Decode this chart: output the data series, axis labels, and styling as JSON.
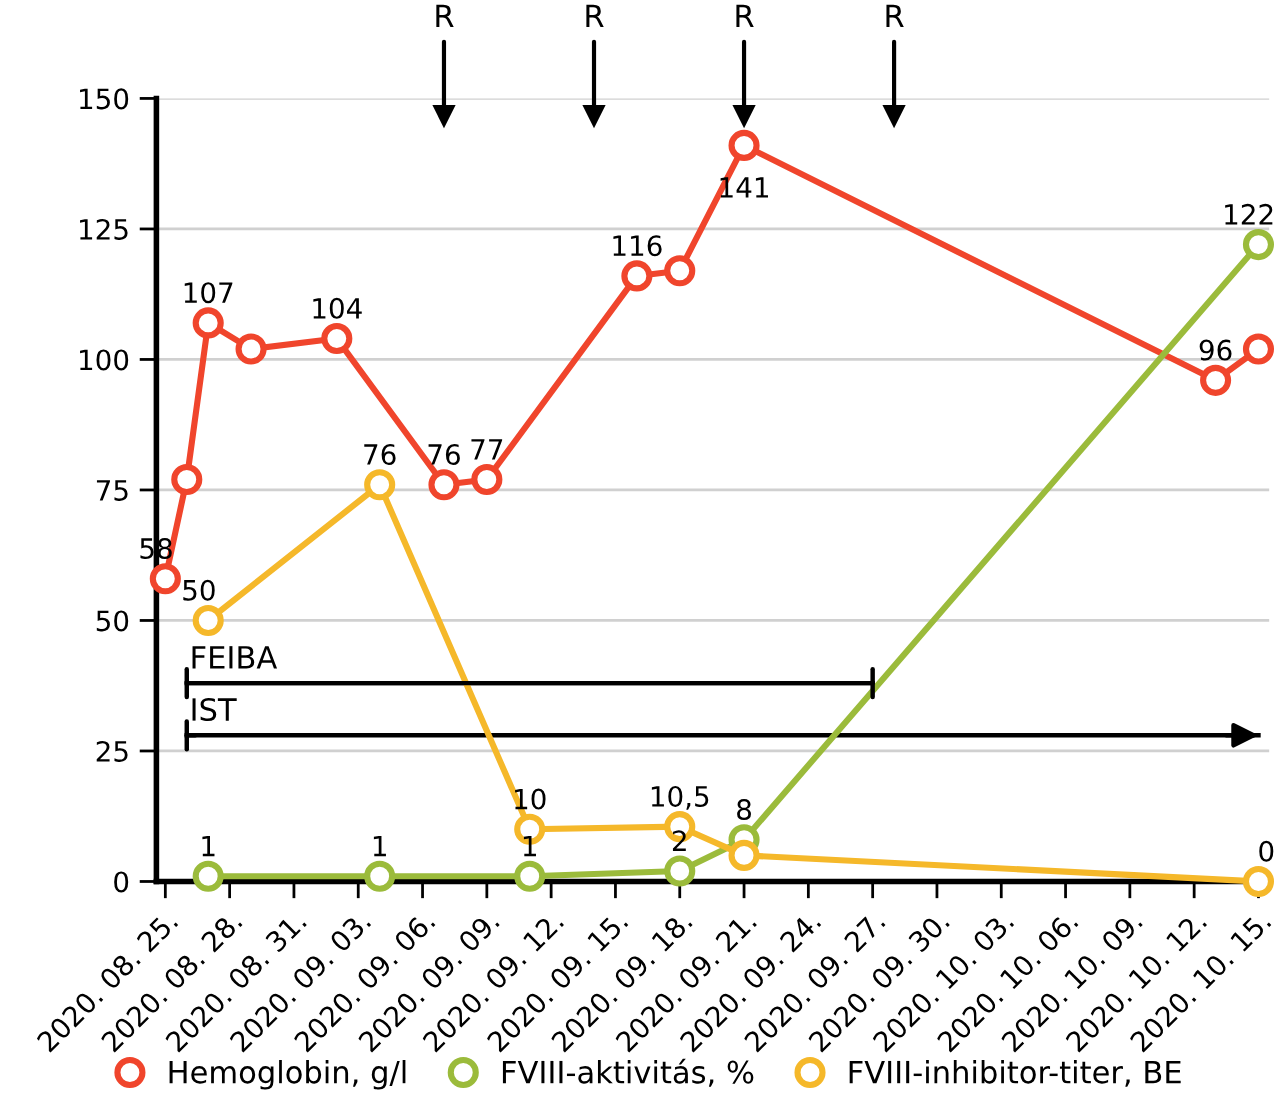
{
  "chart_data": {
    "type": "line",
    "marker": "circle",
    "grid": "y",
    "legend": "bottom",
    "xlim": [
      "2020-08-24T14:00",
      "2020-10-15T12:00"
    ],
    "ylim": [
      0,
      150
    ],
    "yticks": [
      0,
      25,
      50,
      75,
      100,
      125,
      150
    ],
    "xticks": [
      {
        "value": "2020-08-25",
        "label": "2020. 08. 25."
      },
      {
        "value": "2020-08-28",
        "label": "2020. 08. 28."
      },
      {
        "value": "2020-08-31",
        "label": "2020. 08. 31."
      },
      {
        "value": "2020-09-03",
        "label": "2020. 09. 03."
      },
      {
        "value": "2020-09-06",
        "label": "2020. 09. 06."
      },
      {
        "value": "2020-09-09",
        "label": "2020. 09. 09."
      },
      {
        "value": "2020-09-12",
        "label": "2020. 09. 12."
      },
      {
        "value": "2020-09-15",
        "label": "2020. 09. 15."
      },
      {
        "value": "2020-09-18",
        "label": "2020. 09. 18."
      },
      {
        "value": "2020-09-21",
        "label": "2020. 09. 21."
      },
      {
        "value": "2020-09-24",
        "label": "2020. 09. 24."
      },
      {
        "value": "2020-09-27",
        "label": "2020. 09. 27."
      },
      {
        "value": "2020-09-30",
        "label": "2020. 09. 30."
      },
      {
        "value": "2020-10-03",
        "label": "2020. 10. 03."
      },
      {
        "value": "2020-10-06",
        "label": "2020. 10. 06."
      },
      {
        "value": "2020-10-09",
        "label": "2020. 10. 09."
      },
      {
        "value": "2020-10-12",
        "label": "2020. 10. 12."
      },
      {
        "value": "2020-10-15",
        "label": "2020. 10. 15."
      }
    ],
    "series": [
      {
        "name": "Hemoglobin, g/l",
        "color": "#f0452c",
        "x": [
          "2020-08-25",
          "2020-08-26",
          "2020-08-27",
          "2020-08-29",
          "2020-09-02",
          "2020-09-07",
          "2020-09-09",
          "2020-09-16",
          "2020-09-18",
          "2020-09-21",
          "2020-10-13",
          "2020-10-15"
        ],
        "values": [
          58,
          77,
          107,
          102,
          104,
          76,
          77,
          116,
          117,
          141,
          96,
          102
        ],
        "value_labels": [
          "58",
          null,
          "107",
          null,
          "104",
          "76",
          "77",
          "116",
          null,
          "141",
          "96",
          null
        ]
      },
      {
        "name": "FVIII-aktivitás, %",
        "color": "#9bbb3b",
        "x": [
          "2020-08-27",
          "2020-09-04",
          "2020-09-11",
          "2020-09-18",
          "2020-09-21",
          "2020-10-15"
        ],
        "values": [
          1,
          1,
          1,
          2,
          8,
          122
        ],
        "value_labels": [
          "1",
          "1",
          "1",
          "2",
          "8",
          "122"
        ]
      },
      {
        "name": "FVIII-inhibitor-titer, BE",
        "color": "#f5b82a",
        "x": [
          "2020-08-27",
          "2020-09-04",
          "2020-09-11",
          "2020-09-18",
          "2020-09-21",
          "2020-10-15"
        ],
        "values": [
          50,
          76,
          10,
          10.5,
          5,
          0
        ],
        "value_labels": [
          "50",
          "76",
          "10",
          "10,5",
          null,
          "0"
        ]
      },
      {
        "type": "scatter",
        "color": "#000000",
        "marker": "triangle",
        "x": [
          "2020-09-07",
          "2020-09-14",
          "2020-09-21",
          "2020-09-28"
        ],
        "values": [
          146.5,
          146.5,
          146.5,
          146.5
        ]
      },
      {
        "color": "#000000",
        "marker": "none",
        "x": [
          "2020-08-26",
          "2020-09-27"
        ],
        "values": [
          38,
          38
        ]
      },
      {
        "color": "#000000",
        "marker": "none",
        "x": [
          "2020-08-26",
          "2020-10-15"
        ],
        "values": [
          28,
          28
        ]
      }
    ],
    "annotations": [
      {
        "text": "R",
        "x": "2020-09-07",
        "y": 146.5
      },
      {
        "text": "R",
        "x": "2020-09-14",
        "y": 146.5
      },
      {
        "text": "R",
        "x": "2020-09-21",
        "y": 146.5
      },
      {
        "text": "R",
        "x": "2020-09-28",
        "y": 146.5
      },
      {
        "text": "FEIBA",
        "x": "2020-08-26",
        "y": 38
      },
      {
        "text": "IST",
        "x": "2020-08-26",
        "y": 28
      }
    ]
  }
}
